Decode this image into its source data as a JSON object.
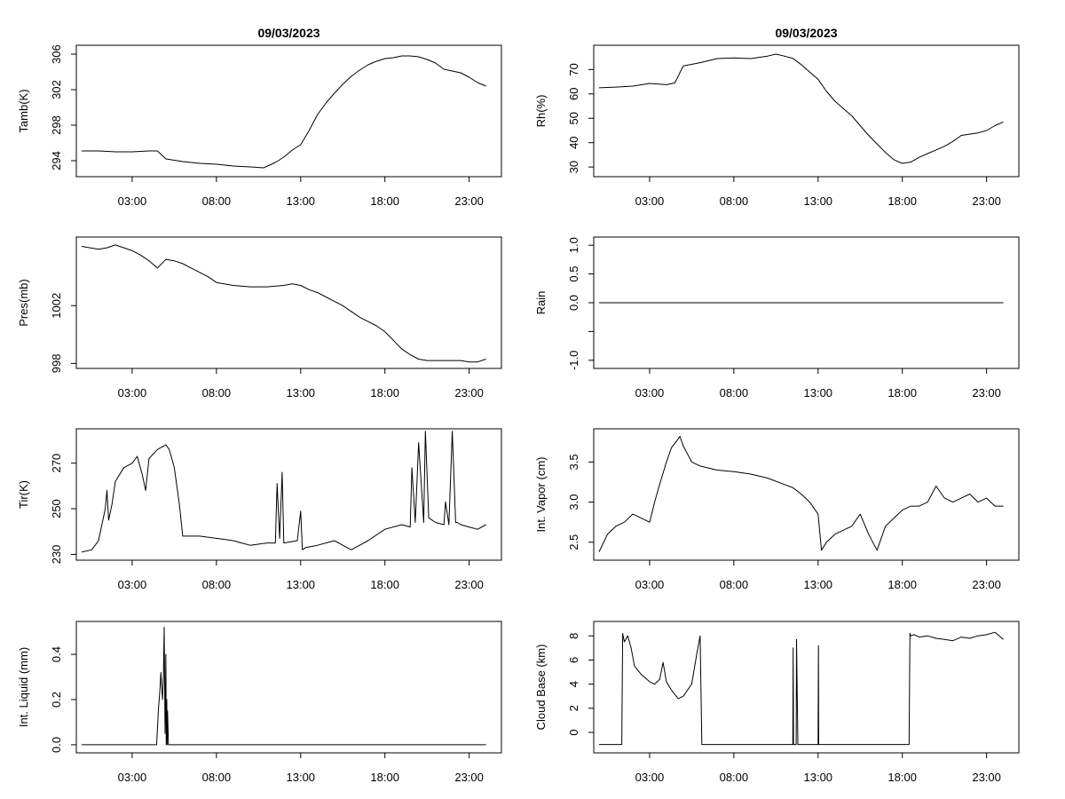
{
  "chart_data": [
    {
      "type": "line",
      "title": "09/03/2023",
      "ylabel": "Tamb(K)",
      "xlabel": "",
      "xlim": [
        0,
        24.6
      ],
      "ylim": [
        292.6,
        306.6
      ],
      "x_ticks": [
        3,
        8,
        13,
        18,
        23
      ],
      "x_tick_labels": [
        "03:00",
        "08:00",
        "13:00",
        "18:00",
        "23:00"
      ],
      "y_ticks": [
        294,
        298,
        302,
        306
      ],
      "y_tick_labels": [
        "294",
        "298",
        "302",
        "306"
      ],
      "series": [
        {
          "name": "Tamb",
          "x": [
            0,
            1,
            2,
            3,
            4,
            4.5,
            5,
            6,
            7,
            8,
            9,
            10,
            10.8,
            11.5,
            12,
            12.5,
            13,
            13.5,
            14,
            14.5,
            15,
            15.5,
            16,
            16.5,
            17,
            17.5,
            18,
            18.5,
            19,
            19.5,
            20,
            20.5,
            21,
            21.5,
            22,
            22.5,
            23,
            23.5,
            24
          ],
          "y": [
            295.1,
            295.1,
            295.0,
            295.0,
            295.1,
            295.1,
            294.2,
            293.9,
            293.7,
            293.6,
            293.4,
            293.3,
            293.2,
            293.8,
            294.4,
            295.2,
            295.8,
            297.4,
            299.2,
            300.5,
            301.6,
            302.6,
            303.5,
            304.2,
            304.8,
            305.2,
            305.5,
            305.6,
            305.8,
            305.8,
            305.7,
            305.4,
            305.0,
            304.3,
            304.1,
            303.9,
            303.4,
            302.8,
            302.4
          ]
        }
      ]
    },
    {
      "type": "line",
      "title": "09/03/2023",
      "ylabel": "Rh(%)",
      "xlabel": "",
      "xlim": [
        0,
        24.6
      ],
      "ylim": [
        27.5,
        78.5
      ],
      "x_ticks": [
        3,
        8,
        13,
        18,
        23
      ],
      "x_tick_labels": [
        "03:00",
        "08:00",
        "13:00",
        "18:00",
        "23:00"
      ],
      "y_ticks": [
        30,
        40,
        50,
        60,
        70
      ],
      "y_tick_labels": [
        "30",
        "40",
        "50",
        "60",
        "70"
      ],
      "series": [
        {
          "name": "Rh",
          "x": [
            0,
            1,
            2,
            3,
            4,
            4.5,
            5,
            6,
            7,
            8,
            9,
            10,
            10.5,
            11,
            11.5,
            12,
            12.5,
            13,
            13.5,
            14,
            14.5,
            15,
            15.5,
            16,
            16.5,
            17,
            17.5,
            18,
            18.5,
            19,
            19.5,
            20,
            20.5,
            21,
            21.5,
            22,
            22.5,
            23,
            23.5,
            24
          ],
          "y": [
            62.5,
            62.8,
            63.2,
            64.3,
            63.8,
            64.5,
            71.5,
            72.8,
            74.5,
            74.8,
            74.5,
            75.5,
            76.3,
            75.5,
            74.6,
            72.0,
            69.0,
            66.0,
            61.0,
            57.0,
            54.0,
            51.0,
            47.0,
            43.0,
            39.5,
            36.0,
            33.0,
            31.5,
            32.0,
            34.0,
            35.5,
            37.0,
            38.5,
            40.5,
            43.0,
            43.5,
            44.0,
            45.0,
            47.0,
            48.5
          ]
        }
      ]
    },
    {
      "type": "line",
      "title": "",
      "ylabel": "Pres(mb)",
      "xlabel": "",
      "xlim": [
        0,
        24.6
      ],
      "ylim": [
        997.9,
        1006.5
      ],
      "x_ticks": [
        3,
        8,
        13,
        18,
        23
      ],
      "x_tick_labels": [
        "03:00",
        "08:00",
        "13:00",
        "18:00",
        "23:00"
      ],
      "y_ticks": [
        998,
        1002
      ],
      "y_tick_labels": [
        "998",
        "1002"
      ],
      "series": [
        {
          "name": "Pres",
          "x": [
            0,
            0.5,
            1,
            1.5,
            2,
            2.5,
            3,
            3.5,
            4,
            4.5,
            5,
            5.5,
            6,
            6.5,
            7,
            7.5,
            8,
            9,
            10,
            11,
            12,
            12.5,
            13,
            13.5,
            14,
            14.5,
            15,
            15.5,
            16,
            16.5,
            17,
            17.5,
            18,
            18.5,
            19,
            19.5,
            20,
            20.5,
            21,
            21.5,
            22,
            22.5,
            23,
            23.5,
            24
          ],
          "y": [
            1006.1,
            1006.0,
            1005.9,
            1006.0,
            1006.2,
            1006.0,
            1005.8,
            1005.5,
            1005.1,
            1004.6,
            1005.2,
            1005.1,
            1004.9,
            1004.6,
            1004.3,
            1004.0,
            1003.6,
            1003.4,
            1003.3,
            1003.3,
            1003.4,
            1003.5,
            1003.4,
            1003.1,
            1002.9,
            1002.6,
            1002.3,
            1002.0,
            1001.6,
            1001.2,
            1000.9,
            1000.6,
            1000.2,
            999.6,
            999.0,
            998.6,
            998.3,
            998.2,
            998.2,
            998.2,
            998.2,
            998.2,
            998.1,
            998.1,
            998.3
          ]
        }
      ]
    },
    {
      "type": "line",
      "title": "",
      "ylabel": "Rain",
      "xlabel": "",
      "xlim": [
        0,
        24.6
      ],
      "ylim": [
        -1.08,
        1.08
      ],
      "x_ticks": [
        3,
        8,
        13,
        18,
        23
      ],
      "x_tick_labels": [
        "03:00",
        "08:00",
        "13:00",
        "18:00",
        "23:00"
      ],
      "y_ticks": [
        -1.0,
        -0.5,
        0.0,
        0.5,
        1.0
      ],
      "y_tick_labels": [
        "-1.0",
        "",
        "0.0",
        "0.5",
        "1.0"
      ],
      "series": [
        {
          "name": "Rain",
          "x": [
            0,
            24
          ],
          "y": [
            0,
            0
          ]
        }
      ]
    },
    {
      "type": "line",
      "title": "",
      "ylabel": "Tir(K)",
      "xlabel": "",
      "xlim": [
        0,
        24.6
      ],
      "ylim": [
        229,
        283.5
      ],
      "x_ticks": [
        3,
        8,
        13,
        18,
        23
      ],
      "x_tick_labels": [
        "03:00",
        "08:00",
        "13:00",
        "18:00",
        "23:00"
      ],
      "y_ticks": [
        230,
        250,
        270
      ],
      "y_tick_labels": [
        "230",
        "250",
        "270"
      ],
      "series": [
        {
          "name": "Tir",
          "x": [
            0,
            0.6,
            1,
            1.4,
            1.5,
            1.6,
            1.8,
            2,
            2.5,
            3,
            3.3,
            3.6,
            3.8,
            4,
            4.5,
            5,
            5.2,
            5.5,
            5.8,
            6,
            6.5,
            7,
            8,
            9,
            9.5,
            10,
            11,
            11.5,
            11.6,
            11.75,
            11.9,
            12,
            12.8,
            13.0,
            13.1,
            13.3,
            14,
            15,
            15.5,
            16,
            16.5,
            17,
            18,
            19,
            19.5,
            19.6,
            19.8,
            20.0,
            20.3,
            20.4,
            20.6,
            21,
            21.5,
            21.6,
            21.8,
            22.0,
            22.2,
            22.3,
            22.5,
            23,
            23.5,
            24
          ],
          "y": [
            231,
            232,
            236,
            250,
            258,
            245,
            252,
            262,
            268,
            270,
            273,
            265,
            258,
            272,
            276,
            278,
            276,
            268,
            252,
            238,
            238,
            238,
            237,
            236,
            235,
            234,
            235,
            235,
            261,
            237,
            266,
            235,
            236,
            249,
            232,
            233,
            234,
            236,
            234,
            232,
            234,
            236,
            241,
            243,
            242,
            268,
            244,
            279,
            244,
            284,
            246,
            244,
            243,
            253,
            243,
            284,
            244,
            244,
            243,
            242,
            241,
            243
          ]
        }
      ]
    },
    {
      "type": "line",
      "title": "",
      "ylabel": "Int. Vapor (cm)",
      "xlabel": "",
      "xlim": [
        0,
        24.6
      ],
      "ylim": [
        2.32,
        3.87
      ],
      "x_ticks": [
        3,
        8,
        13,
        18,
        23
      ],
      "x_tick_labels": [
        "03:00",
        "08:00",
        "13:00",
        "18:00",
        "23:00"
      ],
      "y_ticks": [
        2.5,
        3.0,
        3.5
      ],
      "y_tick_labels": [
        "2.5",
        "3.0",
        "3.5"
      ],
      "series": [
        {
          "name": "Int. Vapor",
          "x": [
            0,
            0.5,
            1,
            1.5,
            2,
            2.5,
            3,
            3.3,
            3.5,
            4,
            4.3,
            4.6,
            4.8,
            5,
            5.5,
            6,
            7,
            8,
            9,
            10,
            11,
            11.5,
            12,
            12.5,
            13,
            13.2,
            13.5,
            14,
            14.5,
            15,
            15.5,
            16,
            16.5,
            17,
            17.5,
            18,
            18.5,
            19,
            19.5,
            20,
            20.5,
            21,
            21.5,
            22,
            22.5,
            23,
            23.5,
            24
          ],
          "y": [
            2.38,
            2.6,
            2.7,
            2.75,
            2.85,
            2.8,
            2.75,
            3.0,
            3.15,
            3.5,
            3.68,
            3.76,
            3.82,
            3.7,
            3.5,
            3.45,
            3.4,
            3.38,
            3.35,
            3.3,
            3.22,
            3.18,
            3.1,
            3.0,
            2.85,
            2.4,
            2.5,
            2.6,
            2.65,
            2.7,
            2.85,
            2.6,
            2.4,
            2.7,
            2.8,
            2.9,
            2.95,
            2.95,
            3.0,
            3.2,
            3.05,
            3.0,
            3.05,
            3.1,
            3.0,
            3.05,
            2.95,
            2.95
          ]
        }
      ]
    },
    {
      "type": "line",
      "title": "",
      "ylabel": "Int. Liquid (mm)",
      "xlabel": "",
      "xlim": [
        0,
        24.6
      ],
      "ylim": [
        -0.02,
        0.53
      ],
      "x_ticks": [
        3,
        8,
        13,
        18,
        23
      ],
      "x_tick_labels": [
        "03:00",
        "08:00",
        "13:00",
        "18:00",
        "23:00"
      ],
      "y_ticks": [
        0.0,
        0.2,
        0.4
      ],
      "y_tick_labels": [
        "0.0",
        "0.2",
        "0.4"
      ],
      "series": [
        {
          "name": "Int. Liquid",
          "x": [
            0,
            4.45,
            4.55,
            4.65,
            4.7,
            4.8,
            4.85,
            4.9,
            4.95,
            5.0,
            5.02,
            5.05,
            5.08,
            5.1,
            5.15,
            24
          ],
          "y": [
            0,
            0,
            0.15,
            0.25,
            0.32,
            0.2,
            0.3,
            0.52,
            0.05,
            0.4,
            0,
            0.2,
            0,
            0.15,
            0,
            0
          ]
        }
      ]
    },
    {
      "type": "line",
      "title": "",
      "ylabel": "Cloud Base (km)",
      "xlabel": "",
      "xlim": [
        0,
        24.6
      ],
      "ylim": [
        -1.4,
        8.9
      ],
      "x_ticks": [
        3,
        8,
        13,
        18,
        23
      ],
      "x_tick_labels": [
        "03:00",
        "08:00",
        "13:00",
        "18:00",
        "23:00"
      ],
      "y_ticks": [
        0,
        2,
        4,
        6,
        8
      ],
      "y_tick_labels": [
        "0",
        "2",
        "4",
        "6",
        "8"
      ],
      "series": [
        {
          "name": "Cloud Base",
          "x": [
            0,
            1.35,
            1.4,
            1.5,
            1.7,
            1.9,
            2.1,
            2.5,
            3,
            3.3,
            3.6,
            3.8,
            4,
            4.3,
            4.7,
            5,
            5.5,
            5.8,
            6.0,
            6.1,
            11.5,
            11.52,
            11.54,
            11.7,
            11.72,
            11.8,
            13.0,
            13.02,
            13.04,
            13.06,
            18.4,
            18.45,
            18.5,
            18.7,
            19,
            19.5,
            20,
            20.5,
            21,
            21.5,
            22,
            22.5,
            23,
            23.5,
            24
          ],
          "y": [
            -1,
            -1,
            8.2,
            7.5,
            8.0,
            7.0,
            5.5,
            4.8,
            4.2,
            4.0,
            4.4,
            5.8,
            4.2,
            3.5,
            2.8,
            3.0,
            4.0,
            6.5,
            8.0,
            -1,
            -1,
            7.0,
            -1,
            -1,
            7.7,
            -1,
            -1,
            7.2,
            -1,
            -1,
            -1,
            8.2,
            8.0,
            8.1,
            7.9,
            8.0,
            7.8,
            7.7,
            7.6,
            7.9,
            7.8,
            8.0,
            8.1,
            8.3,
            7.7
          ]
        }
      ]
    }
  ]
}
